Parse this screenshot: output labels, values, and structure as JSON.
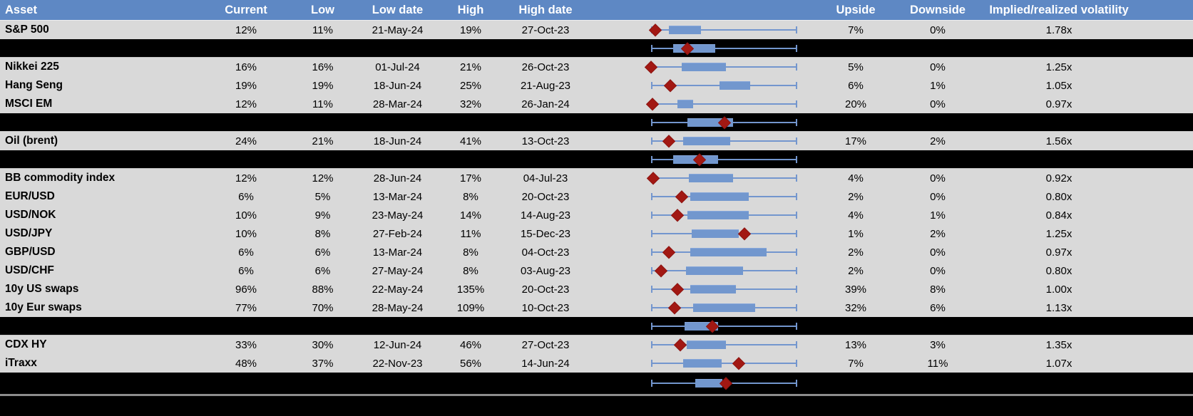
{
  "header": {
    "asset": "Asset",
    "current": "Current",
    "low": "Low",
    "low_date": "Low date",
    "high": "High",
    "high_date": "High date",
    "upside": "Upside",
    "downside": "Downside",
    "implied_realized": "Implied/realized volatility"
  },
  "colors": {
    "header_bg": "#5E88C4",
    "header_text": "#FFFFFF",
    "row_bg": "#D9D9D9",
    "summary_row_bg": "#000000",
    "box_fill": "#7297CE",
    "whisker": "#7396CE",
    "marker_diamond": "#A21813",
    "footer_divider": "#8C8C8C"
  },
  "chart_data": {
    "type": "table",
    "columns": [
      "Asset",
      "Current",
      "Low",
      "Low date",
      "High",
      "High date",
      "Low-high range plot",
      "Upside",
      "Downside",
      "Implied/realized volatility"
    ],
    "range_plot_legend": "range_plot values are fractions of the low-high whisker span (0 = left whisker end, 1 = right whisker end); marker = red diamond (current), box = blue interquartile box",
    "rows": [
      {
        "kind": "asset",
        "asset": "S&P 500",
        "current": "12%",
        "low": "11%",
        "low_date": "21-May-24",
        "high": "19%",
        "high_date": "27-Oct-23",
        "upside": "7%",
        "downside": "0%",
        "implied_realized": "1.78x",
        "range_plot": {
          "box_start": 0.12,
          "box_end": 0.34,
          "marker": 0.03
        }
      },
      {
        "kind": "summary",
        "range_plot": {
          "box_start": 0.15,
          "box_end": 0.44,
          "marker": 0.25
        }
      },
      {
        "kind": "asset",
        "asset": "Nikkei 225",
        "current": "16%",
        "low": "16%",
        "low_date": "01-Jul-24",
        "high": "21%",
        "high_date": "26-Oct-23",
        "upside": "5%",
        "downside": "0%",
        "implied_realized": "1.25x",
        "range_plot": {
          "box_start": 0.21,
          "box_end": 0.51,
          "marker": 0.0
        }
      },
      {
        "kind": "asset",
        "asset": "Hang Seng",
        "current": "19%",
        "low": "19%",
        "low_date": "18-Jun-24",
        "high": "25%",
        "high_date": "21-Aug-23",
        "upside": "6%",
        "downside": "1%",
        "implied_realized": "1.05x",
        "range_plot": {
          "box_start": 0.47,
          "box_end": 0.68,
          "marker": 0.13
        }
      },
      {
        "kind": "asset",
        "asset": "MSCI EM",
        "current": "12%",
        "low": "11%",
        "low_date": "28-Mar-24",
        "high": "32%",
        "high_date": "26-Jan-24",
        "upside": "20%",
        "downside": "0%",
        "implied_realized": "0.97x",
        "range_plot": {
          "box_start": 0.18,
          "box_end": 0.29,
          "marker": 0.01
        }
      },
      {
        "kind": "summary",
        "range_plot": {
          "box_start": 0.25,
          "box_end": 0.56,
          "marker": 0.5
        }
      },
      {
        "kind": "asset",
        "asset": "Oil (brent)",
        "current": "24%",
        "low": "21%",
        "low_date": "18-Jun-24",
        "high": "41%",
        "high_date": "13-Oct-23",
        "upside": "17%",
        "downside": "2%",
        "implied_realized": "1.56x",
        "range_plot": {
          "box_start": 0.22,
          "box_end": 0.54,
          "marker": 0.12
        }
      },
      {
        "kind": "summary",
        "range_plot": {
          "box_start": 0.15,
          "box_end": 0.46,
          "marker": 0.33
        }
      },
      {
        "kind": "asset",
        "asset": "BB commodity index",
        "current": "12%",
        "low": "12%",
        "low_date": "28-Jun-24",
        "high": "17%",
        "high_date": "04-Jul-23",
        "upside": "4%",
        "downside": "0%",
        "implied_realized": "0.92x",
        "range_plot": {
          "box_start": 0.26,
          "box_end": 0.56,
          "marker": 0.015
        }
      },
      {
        "kind": "asset",
        "asset": "EUR/USD",
        "current": "6%",
        "low": "5%",
        "low_date": "13-Mar-24",
        "high": "8%",
        "high_date": "20-Oct-23",
        "upside": "2%",
        "downside": "0%",
        "implied_realized": "0.80x",
        "range_plot": {
          "box_start": 0.27,
          "box_end": 0.67,
          "marker": 0.21
        }
      },
      {
        "kind": "asset",
        "asset": "USD/NOK",
        "current": "10%",
        "low": "9%",
        "low_date": "23-May-24",
        "high": "14%",
        "high_date": "14-Aug-23",
        "upside": "4%",
        "downside": "1%",
        "implied_realized": "0.84x",
        "range_plot": {
          "box_start": 0.25,
          "box_end": 0.67,
          "marker": 0.18
        }
      },
      {
        "kind": "asset",
        "asset": "USD/JPY",
        "current": "10%",
        "low": "8%",
        "low_date": "27-Feb-24",
        "high": "11%",
        "high_date": "15-Dec-23",
        "upside": "1%",
        "downside": "2%",
        "implied_realized": "1.25x",
        "range_plot": {
          "box_start": 0.28,
          "box_end": 0.6,
          "marker": 0.64
        }
      },
      {
        "kind": "asset",
        "asset": "GBP/USD",
        "current": "6%",
        "low": "6%",
        "low_date": "13-Mar-24",
        "high": "8%",
        "high_date": "04-Oct-23",
        "upside": "2%",
        "downside": "0%",
        "implied_realized": "0.97x",
        "range_plot": {
          "box_start": 0.27,
          "box_end": 0.79,
          "marker": 0.12
        }
      },
      {
        "kind": "asset",
        "asset": "USD/CHF",
        "current": "6%",
        "low": "6%",
        "low_date": "27-May-24",
        "high": "8%",
        "high_date": "03-Aug-23",
        "upside": "2%",
        "downside": "0%",
        "implied_realized": "0.80x",
        "range_plot": {
          "box_start": 0.24,
          "box_end": 0.63,
          "marker": 0.07
        }
      },
      {
        "kind": "asset",
        "asset": "10y US swaps",
        "current": "96%",
        "low": "88%",
        "low_date": "22-May-24",
        "high": "135%",
        "high_date": "20-Oct-23",
        "upside": "39%",
        "downside": "8%",
        "implied_realized": "1.00x",
        "range_plot": {
          "box_start": 0.27,
          "box_end": 0.58,
          "marker": 0.18
        }
      },
      {
        "kind": "asset",
        "asset": "10y Eur swaps",
        "current": "77%",
        "low": "70%",
        "low_date": "28-May-24",
        "high": "109%",
        "high_date": "10-Oct-23",
        "upside": "32%",
        "downside": "6%",
        "implied_realized": "1.13x",
        "range_plot": {
          "box_start": 0.29,
          "box_end": 0.71,
          "marker": 0.16
        }
      },
      {
        "kind": "summary",
        "range_plot": {
          "box_start": 0.23,
          "box_end": 0.46,
          "marker": 0.42
        }
      },
      {
        "kind": "asset",
        "asset": "CDX HY",
        "current": "33%",
        "low": "30%",
        "low_date": "12-Jun-24",
        "high": "46%",
        "high_date": "27-Oct-23",
        "upside": "13%",
        "downside": "3%",
        "implied_realized": "1.35x",
        "range_plot": {
          "box_start": 0.245,
          "box_end": 0.51,
          "marker": 0.2
        }
      },
      {
        "kind": "asset",
        "asset": "iTraxx",
        "current": "48%",
        "low": "37%",
        "low_date": "22-Nov-23",
        "high": "56%",
        "high_date": "14-Jun-24",
        "upside": "7%",
        "downside": "11%",
        "implied_realized": "1.07x",
        "range_plot": {
          "box_start": 0.22,
          "box_end": 0.485,
          "marker": 0.6
        }
      },
      {
        "kind": "summary",
        "range_plot": {
          "box_start": 0.3,
          "box_end": 0.49,
          "marker": 0.51
        }
      }
    ]
  }
}
